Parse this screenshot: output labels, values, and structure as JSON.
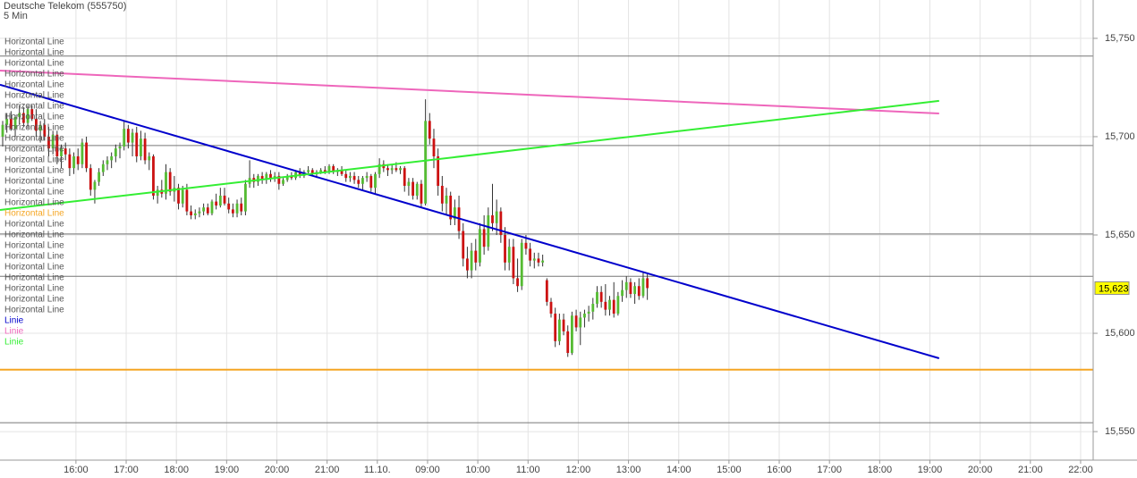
{
  "chart_data": {
    "type": "candlestick",
    "title": "Deutsche Telekom (555750)",
    "subtitle": "5 Min",
    "up_color": "#55bb33",
    "down_color": "#cc1111",
    "wick_color": "#333333",
    "ohlc": [
      [
        15.7,
        15.708,
        15.695,
        15.706
      ],
      [
        15.706,
        15.712,
        15.702,
        15.709
      ],
      [
        15.709,
        15.713,
        15.703,
        15.704
      ],
      [
        15.704,
        15.711,
        15.7,
        15.71
      ],
      [
        15.71,
        15.716,
        15.706,
        15.712
      ],
      [
        15.712,
        15.715,
        15.705,
        15.707
      ],
      [
        15.707,
        15.716,
        15.704,
        15.714
      ],
      [
        15.714,
        15.716,
        15.708,
        15.709
      ],
      [
        15.709,
        15.714,
        15.7,
        15.703
      ],
      [
        15.703,
        15.708,
        15.697,
        15.706
      ],
      [
        15.706,
        15.709,
        15.698,
        15.7
      ],
      [
        15.7,
        15.705,
        15.69,
        15.694
      ],
      [
        15.694,
        15.703,
        15.691,
        15.701
      ],
      [
        15.701,
        15.703,
        15.686,
        15.69
      ],
      [
        15.69,
        15.696,
        15.684,
        15.694
      ],
      [
        15.694,
        15.697,
        15.688,
        15.691
      ],
      [
        15.691,
        15.694,
        15.68,
        15.684
      ],
      [
        15.684,
        15.692,
        15.681,
        15.69
      ],
      [
        15.69,
        15.694,
        15.683,
        15.686
      ],
      [
        15.686,
        15.699,
        15.684,
        15.697
      ],
      [
        15.697,
        15.7,
        15.682,
        15.684
      ],
      [
        15.684,
        15.686,
        15.67,
        15.673
      ],
      [
        15.673,
        15.678,
        15.666,
        15.677
      ],
      [
        15.677,
        15.684,
        15.675,
        15.682
      ],
      [
        15.682,
        15.688,
        15.68,
        15.686
      ],
      [
        15.686,
        15.69,
        15.683,
        15.688
      ],
      [
        15.688,
        15.692,
        15.684,
        15.69
      ],
      [
        15.69,
        15.696,
        15.687,
        15.694
      ],
      [
        15.694,
        15.697,
        15.689,
        15.695
      ],
      [
        15.695,
        15.708,
        15.693,
        15.704
      ],
      [
        15.704,
        15.706,
        15.694,
        15.697
      ],
      [
        15.697,
        15.704,
        15.69,
        15.702
      ],
      [
        15.702,
        15.705,
        15.687,
        15.69
      ],
      [
        15.69,
        15.703,
        15.688,
        15.699
      ],
      [
        15.699,
        15.702,
        15.686,
        15.688
      ],
      [
        15.688,
        15.692,
        15.683,
        15.69
      ],
      [
        15.69,
        15.691,
        15.668,
        15.67
      ],
      [
        15.67,
        15.675,
        15.666,
        15.673
      ],
      [
        15.673,
        15.678,
        15.669,
        15.671
      ],
      [
        15.671,
        15.686,
        15.668,
        15.682
      ],
      [
        15.682,
        15.684,
        15.67,
        15.672
      ],
      [
        15.672,
        15.68,
        15.667,
        15.674
      ],
      [
        15.674,
        15.676,
        15.663,
        15.666
      ],
      [
        15.666,
        15.675,
        15.664,
        15.673
      ],
      [
        15.673,
        15.676,
        15.66,
        15.662
      ],
      [
        15.662,
        15.665,
        15.658,
        15.66
      ],
      [
        15.66,
        15.663,
        15.658,
        15.661
      ],
      [
        15.661,
        15.664,
        15.659,
        15.662
      ],
      [
        15.662,
        15.666,
        15.66,
        15.664
      ],
      [
        15.664,
        15.666,
        15.66,
        15.661
      ],
      [
        15.661,
        15.668,
        15.66,
        15.667
      ],
      [
        15.667,
        15.671,
        15.663,
        15.665
      ],
      [
        15.665,
        15.674,
        15.664,
        15.67
      ],
      [
        15.67,
        15.674,
        15.665,
        15.666
      ],
      [
        15.666,
        15.669,
        15.661,
        15.663
      ],
      [
        15.663,
        15.666,
        15.659,
        15.661
      ],
      [
        15.661,
        15.668,
        15.659,
        15.666
      ],
      [
        15.666,
        15.669,
        15.66,
        15.662
      ],
      [
        15.662,
        15.678,
        15.66,
        15.676
      ],
      [
        15.676,
        15.688,
        15.674,
        15.679
      ],
      [
        15.679,
        15.681,
        15.674,
        15.677
      ],
      [
        15.677,
        15.681,
        15.675,
        15.68
      ],
      [
        15.68,
        15.682,
        15.676,
        15.678
      ],
      [
        15.678,
        15.682,
        15.676,
        15.681
      ],
      [
        15.681,
        15.683,
        15.677,
        15.679
      ],
      [
        15.679,
        15.682,
        15.677,
        15.68
      ],
      [
        15.68,
        15.682,
        15.673,
        15.676
      ],
      [
        15.676,
        15.679,
        15.675,
        15.678
      ],
      [
        15.678,
        15.681,
        15.677,
        15.68
      ],
      [
        15.68,
        15.682,
        15.678,
        15.679
      ],
      [
        15.679,
        15.683,
        15.678,
        15.682
      ],
      [
        15.682,
        15.684,
        15.679,
        15.68
      ],
      [
        15.68,
        15.683,
        15.679,
        15.682
      ],
      [
        15.682,
        15.685,
        15.681,
        15.683
      ],
      [
        15.683,
        15.684,
        15.68,
        15.681
      ],
      [
        15.681,
        15.683,
        15.679,
        15.682
      ],
      [
        15.682,
        15.684,
        15.681,
        15.683
      ],
      [
        15.683,
        15.685,
        15.681,
        15.682
      ],
      [
        15.682,
        15.686,
        15.681,
        15.685
      ],
      [
        15.685,
        15.686,
        15.681,
        15.682
      ],
      [
        15.682,
        15.684,
        15.68,
        15.683
      ],
      [
        15.683,
        15.685,
        15.68,
        15.681
      ],
      [
        15.681,
        15.683,
        15.677,
        15.679
      ],
      [
        15.679,
        15.682,
        15.677,
        15.68
      ],
      [
        15.68,
        15.682,
        15.676,
        15.678
      ],
      [
        15.678,
        15.68,
        15.674,
        15.676
      ],
      [
        15.676,
        15.68,
        15.673,
        15.679
      ],
      [
        15.679,
        15.682,
        15.677,
        15.68
      ],
      [
        15.68,
        15.681,
        15.672,
        15.674
      ],
      [
        15.674,
        15.682,
        15.671,
        15.681
      ],
      [
        15.681,
        15.689,
        15.679,
        15.686
      ],
      [
        15.686,
        15.688,
        15.682,
        15.684
      ],
      [
        15.684,
        15.686,
        15.68,
        15.683
      ],
      [
        15.683,
        15.686,
        15.681,
        15.684
      ],
      [
        15.684,
        15.687,
        15.682,
        15.683
      ],
      [
        15.683,
        15.685,
        15.681,
        15.684
      ],
      [
        15.684,
        15.685,
        15.672,
        15.675
      ],
      [
        15.675,
        15.679,
        15.67,
        15.677
      ],
      [
        15.677,
        15.679,
        15.668,
        15.67
      ],
      [
        15.67,
        15.677,
        15.668,
        15.676
      ],
      [
        15.676,
        15.678,
        15.664,
        15.666
      ],
      [
        15.666,
        15.719,
        15.665,
        15.708
      ],
      [
        15.708,
        15.712,
        15.696,
        15.699
      ],
      [
        15.699,
        15.704,
        15.684,
        15.69
      ],
      [
        15.69,
        15.694,
        15.67,
        15.675
      ],
      [
        15.675,
        15.68,
        15.662,
        15.666
      ],
      [
        15.666,
        15.674,
        15.66,
        15.67
      ],
      [
        15.67,
        15.672,
        15.655,
        15.658
      ],
      [
        15.658,
        15.668,
        15.655,
        15.664
      ],
      [
        15.664,
        15.67,
        15.648,
        15.652
      ],
      [
        15.652,
        15.656,
        15.634,
        15.638
      ],
      [
        15.638,
        15.644,
        15.628,
        15.632
      ],
      [
        15.632,
        15.646,
        15.628,
        15.642
      ],
      [
        15.642,
        15.648,
        15.632,
        15.636
      ],
      [
        15.636,
        15.656,
        15.634,
        15.653
      ],
      [
        15.653,
        15.66,
        15.64,
        15.644
      ],
      [
        15.644,
        15.664,
        15.642,
        15.66
      ],
      [
        15.66,
        15.676,
        15.652,
        15.656
      ],
      [
        15.656,
        15.668,
        15.65,
        15.662
      ],
      [
        15.662,
        15.664,
        15.646,
        15.65
      ],
      [
        15.65,
        15.654,
        15.632,
        15.636
      ],
      [
        15.636,
        15.648,
        15.632,
        15.644
      ],
      [
        15.644,
        15.648,
        15.625,
        15.628
      ],
      [
        15.628,
        15.638,
        15.621,
        15.624
      ],
      [
        15.624,
        15.648,
        15.622,
        15.646
      ],
      [
        15.646,
        15.65,
        15.64,
        15.643
      ],
      [
        15.643,
        15.646,
        15.634,
        15.637
      ],
      [
        15.637,
        15.641,
        15.633,
        15.638
      ],
      [
        15.638,
        15.641,
        15.634,
        15.636
      ],
      [
        15.636,
        15.64,
        15.634,
        15.637
      ],
      [
        15.627,
        15.628,
        15.614,
        15.616
      ],
      [
        15.616,
        15.618,
        15.608,
        15.61
      ],
      [
        15.61,
        15.613,
        15.593,
        15.596
      ],
      [
        15.596,
        15.61,
        15.594,
        15.607
      ],
      [
        15.607,
        15.61,
        15.599,
        15.601
      ],
      [
        15.601,
        15.604,
        15.588,
        15.59
      ],
      [
        15.59,
        15.611,
        15.589,
        15.609
      ],
      [
        15.609,
        15.612,
        15.601,
        15.603
      ],
      [
        15.603,
        15.611,
        15.594,
        15.608
      ],
      [
        15.608,
        15.612,
        15.603,
        15.61
      ],
      [
        15.61,
        15.614,
        15.606,
        15.611
      ],
      [
        15.611,
        15.618,
        15.607,
        15.615
      ],
      [
        15.615,
        15.624,
        15.613,
        15.621
      ],
      [
        15.621,
        15.624,
        15.613,
        15.616
      ],
      [
        15.616,
        15.625,
        15.609,
        15.612
      ],
      [
        15.612,
        15.619,
        15.609,
        15.617
      ],
      [
        15.617,
        15.626,
        15.608,
        15.61
      ],
      [
        15.61,
        15.621,
        15.609,
        15.619
      ],
      [
        15.619,
        15.627,
        15.616,
        15.622
      ],
      [
        15.622,
        15.629,
        15.618,
        15.626
      ],
      [
        15.626,
        15.628,
        15.618,
        15.62
      ],
      [
        15.62,
        15.626,
        15.615,
        15.624
      ],
      [
        15.624,
        15.628,
        15.617,
        15.619
      ],
      [
        15.619,
        15.631,
        15.618,
        15.628
      ],
      [
        15.628,
        15.63,
        15.617,
        15.623
      ]
    ],
    "xlim": [
      -0.64,
      260.5
    ],
    "xticks": [
      {
        "value": 17.5,
        "label": "16:00"
      },
      {
        "value": 29.5,
        "label": "17:00"
      },
      {
        "value": 41.5,
        "label": "18:00"
      },
      {
        "value": 53.5,
        "label": "19:00"
      },
      {
        "value": 65.5,
        "label": "20:00"
      },
      {
        "value": 77.5,
        "label": "21:00"
      },
      {
        "value": 89.5,
        "label": "11.10."
      },
      {
        "value": 101.5,
        "label": "09:00"
      },
      {
        "value": 113.5,
        "label": "10:00"
      },
      {
        "value": 125.5,
        "label": "11:00"
      },
      {
        "value": 137.5,
        "label": "12:00"
      },
      {
        "value": 149.5,
        "label": "13:00"
      },
      {
        "value": 161.5,
        "label": "14:00"
      },
      {
        "value": 173.5,
        "label": "15:00"
      },
      {
        "value": 185.5,
        "label": "16:00"
      },
      {
        "value": 197.5,
        "label": "17:00"
      },
      {
        "value": 209.5,
        "label": "18:00"
      },
      {
        "value": 221.5,
        "label": "19:00"
      },
      {
        "value": 233.5,
        "label": "20:00"
      },
      {
        "value": 245.5,
        "label": "21:00"
      },
      {
        "value": 257.5,
        "label": "22:00"
      }
    ],
    "ylim": [
      15.5355,
      15.7695
    ],
    "yticks": [
      {
        "value": 15.75,
        "label": "15,750"
      },
      {
        "value": 15.7,
        "label": "15,700"
      },
      {
        "value": 15.65,
        "label": "15,650"
      },
      {
        "value": 15.6,
        "label": "15,600"
      },
      {
        "value": 15.55,
        "label": "15,550"
      }
    ],
    "grid": true,
    "last_price": {
      "value": 15.623,
      "label": "15,623"
    },
    "horizontal_lines": [
      {
        "value": 15.741,
        "color": "#777777"
      },
      {
        "value": 15.6955,
        "color": "#777777"
      },
      {
        "value": 15.6505,
        "color": "#777777"
      },
      {
        "value": 15.629,
        "color": "#777777"
      },
      {
        "value": 15.5815,
        "color": "#f5a623"
      },
      {
        "value": 15.5545,
        "color": "#777777"
      }
    ],
    "trend_lines": [
      {
        "color": "#0000cc",
        "x": [
          -0.64,
          223.7
        ],
        "values": [
          15.7264,
          15.5873
        ]
      },
      {
        "color": "#ee66bb",
        "x": [
          -0.64,
          223.7
        ],
        "values": [
          15.7336,
          15.7118
        ]
      },
      {
        "color": "#33ee33",
        "x": [
          -0.64,
          223.7
        ],
        "values": [
          15.6627,
          15.7182
        ]
      }
    ],
    "legend": [
      {
        "label": "Horizontal Line",
        "color": "#555555"
      },
      {
        "label": "Horizontal Line",
        "color": "#555555"
      },
      {
        "label": "Horizontal Line",
        "color": "#555555"
      },
      {
        "label": "Horizontal Line",
        "color": "#555555"
      },
      {
        "label": "Horizontal Line",
        "color": "#555555"
      },
      {
        "label": "Horizontal Line",
        "color": "#555555"
      },
      {
        "label": "Horizontal Line",
        "color": "#555555"
      },
      {
        "label": "Horizontal Line",
        "color": "#555555"
      },
      {
        "label": "Horizontal Line",
        "color": "#555555"
      },
      {
        "label": "Horizontal Line",
        "color": "#555555"
      },
      {
        "label": "Horizontal Line",
        "color": "#555555"
      },
      {
        "label": "Horizontal Line",
        "color": "#555555"
      },
      {
        "label": "Horizontal Line",
        "color": "#555555"
      },
      {
        "label": "Horizontal Line",
        "color": "#555555"
      },
      {
        "label": "Horizontal Line",
        "color": "#555555"
      },
      {
        "label": "Horizontal Line",
        "color": "#555555"
      },
      {
        "label": "Horizontal Line",
        "color": "#f5a623"
      },
      {
        "label": "Horizontal Line",
        "color": "#555555"
      },
      {
        "label": "Horizontal Line",
        "color": "#555555"
      },
      {
        "label": "Horizontal Line",
        "color": "#555555"
      },
      {
        "label": "Horizontal Line",
        "color": "#555555"
      },
      {
        "label": "Horizontal Line",
        "color": "#555555"
      },
      {
        "label": "Horizontal Line",
        "color": "#555555"
      },
      {
        "label": "Horizontal Line",
        "color": "#555555"
      },
      {
        "label": "Horizontal Line",
        "color": "#555555"
      },
      {
        "label": "Horizontal Line",
        "color": "#555555"
      },
      {
        "label": "Linie",
        "color": "#0000cc"
      },
      {
        "label": "Linie",
        "color": "#ee66bb"
      },
      {
        "label": "Linie",
        "color": "#33ee33"
      }
    ]
  }
}
